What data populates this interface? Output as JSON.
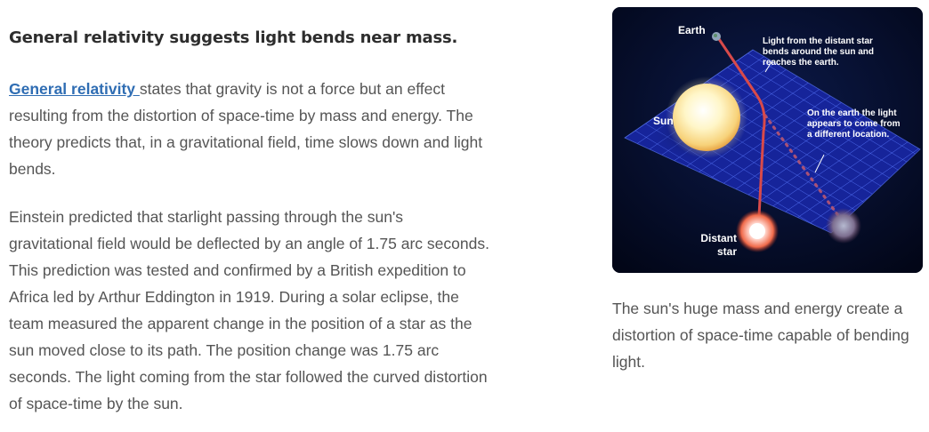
{
  "article": {
    "heading": "General relativity suggests light bends near mass.",
    "paragraph1": {
      "link_text": "General relativity ",
      "rest": "states that gravity is not a force but an effect resulting from the distortion of space-time by mass and energy. The theory predicts that, in a gravitational field, time slows down and light bends."
    },
    "paragraph2": "Einstein predicted that starlight passing through the sun's gravitational field would be deflected by an angle of 1.75 arc seconds. This prediction was tested and confirmed by a British expedition to Africa led by Arthur Eddington in 1919. During a solar eclipse, the team measured the apparent change in the position of a star as the sun moved close to its path. The position change was 1.75 arc seconds. The light coming from the star followed the curved distortion of space-time by the sun."
  },
  "figure": {
    "labels": {
      "earth": "Earth",
      "sun": "Sun",
      "distant_star_line1": "Distant",
      "distant_star_line2": "star",
      "annotation1_line1": "Light from the distant star",
      "annotation1_line2": "bends around the sun and",
      "annotation1_line3": "reaches the earth.",
      "annotation2_line1": "On the earth the light",
      "annotation2_line2": "appears to come from",
      "annotation2_line3": "a different location."
    },
    "caption": "The sun's huge mass and energy create a distortion of space-time capable of bending light."
  },
  "colors": {
    "link": "#2f6db3",
    "heading": "#2d2d2d",
    "body_text": "#555555",
    "grid": "#3a53e0",
    "light_path": "#d84a4a"
  }
}
